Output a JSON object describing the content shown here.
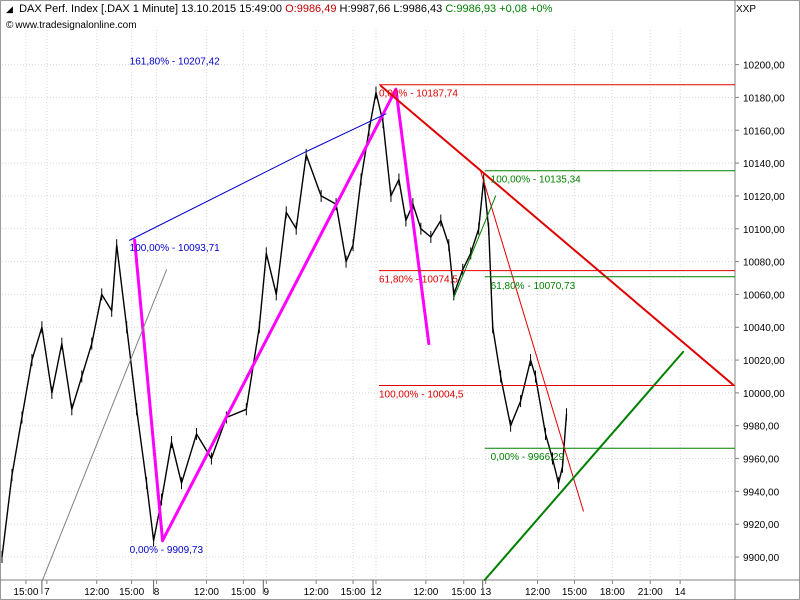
{
  "header": {
    "symbol": "DAX Perf. Index [.DAX",
    "interval": "1 Minute]",
    "datetime": "13.10.2015 15:49:00",
    "open": "O:9986,49",
    "high": "H:9987,66",
    "low": "L:9986,43",
    "close": "C:9986,93",
    "change": "+0,08",
    "change_pct": "+0%",
    "website": "www.tradesignalonline.com",
    "scale_label": "XXP",
    "colors": {
      "open": "#c00000",
      "close": "#008000"
    }
  },
  "chart_data": {
    "type": "line",
    "series": [
      {
        "name": "",
        "style": "price",
        "color": "#000000",
        "x": [
          0,
          10,
          20,
          30,
          40,
          50,
          60,
          70,
          80,
          90,
          100,
          110,
          115,
          125,
          135,
          145,
          152,
          160,
          170,
          180,
          195,
          210,
          225,
          245,
          258,
          265,
          275,
          285,
          295,
          305,
          320,
          335,
          345,
          352,
          360,
          368,
          375,
          382,
          390,
          398,
          405,
          412,
          420,
          430,
          440,
          448,
          453,
          462,
          470,
          478,
          483,
          488,
          492,
          500,
          510,
          520,
          530,
          535,
          545,
          552,
          558,
          562,
          566
        ],
        "y": [
          9900,
          9950,
          9985,
          10020,
          10040,
          10000,
          10030,
          9990,
          10010,
          10030,
          10060,
          10050,
          10090,
          10040,
          9990,
          9945,
          9910,
          9935,
          9970,
          9945,
          9975,
          9960,
          9985,
          9990,
          10040,
          10085,
          10060,
          10110,
          10100,
          10145,
          10120,
          10115,
          10080,
          10090,
          10130,
          10160,
          10183,
          10165,
          10120,
          10130,
          10105,
          10115,
          10100,
          10095,
          10105,
          10090,
          10060,
          10075,
          10085,
          10100,
          10130,
          10100,
          10040,
          10010,
          9980,
          9995,
          10020,
          10010,
          9975,
          9960,
          9945,
          9955,
          9987
        ]
      }
    ],
    "overlays": [
      {
        "kind": "trend",
        "color": "#ff00ff",
        "width": 3,
        "x1": 133,
        "y1": 10093,
        "x2": 161,
        "y2": 9910
      },
      {
        "kind": "trend",
        "color": "#ff00ff",
        "width": 3,
        "x1": 161,
        "y1": 9910,
        "x2": 395,
        "y2": 10185
      },
      {
        "kind": "trend",
        "color": "#ff00ff",
        "width": 3,
        "x1": 395,
        "y1": 10185,
        "x2": 428,
        "y2": 10030
      },
      {
        "kind": "trend",
        "color": "#0000cc",
        "width": 1,
        "x1": 128,
        "y1": 10093,
        "x2": 305,
        "y2": 10147
      },
      {
        "kind": "trend",
        "color": "#0000cc",
        "width": 1,
        "x1": 305,
        "y1": 10147,
        "x2": 385,
        "y2": 10170
      },
      {
        "kind": "trend",
        "color": "#808080",
        "width": 1,
        "x1": 40,
        "y1": 9885,
        "x2": 165,
        "y2": 10075
      },
      {
        "kind": "trend",
        "color": "#e00000",
        "width": 2,
        "x1": 380,
        "y1": 10187,
        "x2": 733,
        "y2": 10005
      },
      {
        "kind": "trend",
        "color": "#e00000",
        "width": 1,
        "x1": 480,
        "y1": 10135,
        "x2": 583,
        "y2": 9928
      },
      {
        "kind": "trend",
        "color": "#008000",
        "width": 2,
        "x1": 484,
        "y1": 9886,
        "x2": 683,
        "y2": 10025
      },
      {
        "kind": "trend",
        "color": "#008000",
        "width": 1,
        "x1": 453,
        "y1": 10058,
        "x2": 495,
        "y2": 10120
      },
      {
        "kind": "fib",
        "color": "#e00000",
        "x1": 378,
        "x2": 735,
        "y": 10187.74,
        "label": "0,00% - 10187,74",
        "lx": 378
      },
      {
        "kind": "fib",
        "color": "#e00000",
        "x1": 378,
        "x2": 735,
        "y": 10074.5,
        "label": "61,80% - 10074,5",
        "lx": 378
      },
      {
        "kind": "fib",
        "color": "#e00000",
        "x1": 378,
        "x2": 735,
        "y": 10004.5,
        "label": "100,00% - 10004,5",
        "lx": 378
      },
      {
        "kind": "fib",
        "color": "#008000",
        "x1": 484,
        "x2": 735,
        "y": 10135.34,
        "label": "100,00% - 10135,34",
        "lx": 490
      },
      {
        "kind": "fib",
        "color": "#008000",
        "x1": 484,
        "x2": 735,
        "y": 10070.73,
        "label": "61,80% - 10070,73",
        "lx": 490
      },
      {
        "kind": "fib",
        "color": "#008000",
        "x1": 484,
        "x2": 735,
        "y": 9966.29,
        "label": "0,00% - 9966,29",
        "lx": 490
      },
      {
        "kind": "fibtext",
        "color": "#0000cc",
        "y": 10207.42,
        "label": "161,80% - 10207,42",
        "lx": 128
      },
      {
        "kind": "fibtext",
        "color": "#0000cc",
        "y": 10093.71,
        "label": "100,00% - 10093,71",
        "lx": 128
      },
      {
        "kind": "fibtext",
        "color": "#0000cc",
        "y": 9909.73,
        "label": "0,00% - 9909,73",
        "lx": 128
      }
    ],
    "y_ticks": [
      "9900,00",
      "9920,00",
      "9940,00",
      "9960,00",
      "9980,00",
      "10000,00",
      "10020,00",
      "10040,00",
      "10060,00",
      "10080,00",
      "10100,00",
      "10120,00",
      "10140,00",
      "10160,00",
      "10180,00",
      "10200,00"
    ],
    "y_tick_values": [
      9900,
      9920,
      9940,
      9960,
      9980,
      10000,
      10020,
      10040,
      10060,
      10080,
      10100,
      10120,
      10140,
      10160,
      10180,
      10200
    ],
    "x_ticks": [
      "15:00",
      "7",
      "12:00",
      "15:00",
      "8",
      "12:00",
      "15:00",
      "9",
      "12:00",
      "15:00",
      "12",
      "12:00",
      "15:00",
      "13",
      "12:00",
      "15:00",
      "18:00",
      "21:00",
      "14"
    ],
    "x_tick_positions": [
      24,
      45,
      95,
      130,
      155,
      205,
      242,
      265,
      315,
      352,
      375,
      425,
      463,
      485,
      537,
      574,
      612,
      650,
      680
    ],
    "day_separators": [
      40,
      152,
      262,
      372,
      482
    ],
    "x_range": [
      0,
      735
    ],
    "ylim": [
      9886,
      10215
    ],
    "grid": true,
    "legend": "none"
  }
}
